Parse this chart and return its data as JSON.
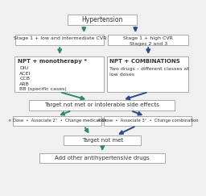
{
  "bg_color": "#f0f0f0",
  "box_color": "#ffffff",
  "box_edge": "#aaaaaa",
  "arrow_green": "#2e8b6e",
  "arrow_blue": "#2b4b8c",
  "text_color": "#333333",
  "title": "Hypertension",
  "left_stage": "Stage 1 + low and intermediate CVR",
  "right_stage": "Stage 1 + high CVR\nStages 2 and 3",
  "left_therapy_title": "NPT + monotherapy *",
  "left_therapy_body": "DIU\nACEI\nCCB\nARB\nBB (specific cases)",
  "right_therapy_title": "NPT + COMBINATIONS",
  "right_therapy_body": "Two drugs – different classes at\nlow doses",
  "middle_box": "Target not met or intolerable side effects",
  "left_options": "× Dose  •  Associate 2°  •  Change medication",
  "right_options": "× Dose  •  Associate 3°  •  Change combination",
  "target_not_met": "Target not met",
  "add_drugs": "Add other antihypertensive drugs"
}
